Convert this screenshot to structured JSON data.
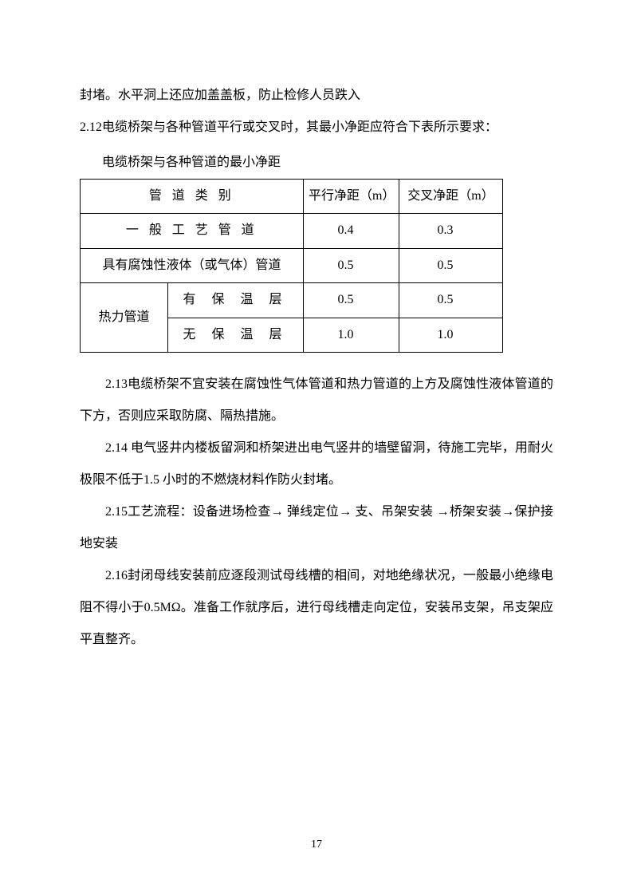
{
  "para1": "封堵。水平洞上还应加盖盖板，防止检修人员跌入",
  "para2": "2.12电缆桥架与各种管道平行或交叉时，其最小净距应符合下表所示要求：",
  "table": {
    "caption": "电缆桥架与各种管道的最小净距",
    "header": {
      "category": "管 道 类 别",
      "parallel": "平行净距（m）",
      "cross": "交叉净距（m）"
    },
    "rows": {
      "r1": {
        "cat": "一 般 工 艺 管 道",
        "parallel": "0.4",
        "cross": "0.3"
      },
      "r2": {
        "cat": "具有腐蚀性液体（或气体）管道",
        "parallel": "0.5",
        "cross": "0.5"
      },
      "r3": {
        "cat_main": "热力管道",
        "cat_sub": "有 保 温 层",
        "parallel": "0.5",
        "cross": "0.5"
      },
      "r4": {
        "cat_sub": "无 保 温 层",
        "parallel": "1.0",
        "cross": "1.0"
      }
    }
  },
  "para3": "2.13电缆桥架不宜安装在腐蚀性气体管道和热力管道的上方及腐蚀性液体管道的下方，否则应采取防腐、隔热措施。",
  "para4": "2.14 电气竖井内楼板留洞和桥架进出电气竖井的墙壁留洞，待施工完毕，用耐火极限不低于1.5 小时的不燃烧材料作防火封堵。",
  "para5": "2.15工艺流程：设备进场检查→  弹线定位→   支、吊架安装   →桥架安装→保护接地安装",
  "para6": "2.16封闭母线安装前应逐段测试母线槽的相间，对地绝缘状况，一般最小绝缘电阻不得小于0.5MΩ。准备工作就序后，进行母线槽走向定位，安装吊支架，吊支架应平直整齐。",
  "page_number": "17"
}
